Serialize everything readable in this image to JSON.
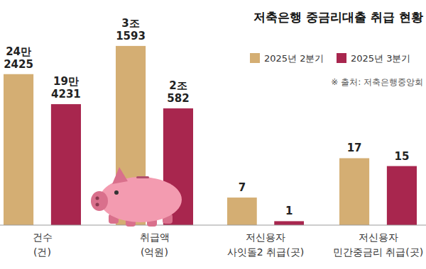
{
  "chart_data": [
    {
      "type": "bar",
      "title": "저축은행 중금리대출 취급 현황",
      "subtitle": "※ 출처: 저축은행중앙회",
      "legend": "top-right",
      "data_labels": true,
      "tick_labels": false,
      "categories": [
        "건수\n(건)"
      ],
      "series": [
        {
          "name": "2025년 2분기",
          "color": "#d4ae73",
          "values": [
            242425
          ],
          "value_labels": [
            "24만\n2425"
          ]
        },
        {
          "name": "2025년 3분기",
          "color": "#a8264e",
          "values": [
            194231
          ],
          "value_labels": [
            "19만\n4231"
          ]
        }
      ],
      "ylim": [
        0,
        316000
      ]
    },
    {
      "type": "bar",
      "data_labels": true,
      "tick_labels": false,
      "categories": [
        "취급액\n(억원)"
      ],
      "series": [
        {
          "color": "#d4ae73",
          "values": [
            31593
          ],
          "value_labels": [
            "3조\n1593"
          ]
        },
        {
          "color": "#a8264e",
          "values": [
            20582
          ],
          "value_labels": [
            "2조\n582"
          ]
        }
      ],
      "ylim": [
        0,
        34700
      ]
    },
    {
      "type": "bar",
      "data_labels": true,
      "tick_labels": false,
      "categories": [
        "저신용자\n사잇돌2 취급(곳)"
      ],
      "series": [
        {
          "color": "#d4ae73",
          "values": [
            7
          ]
        },
        {
          "color": "#a8264e",
          "values": [
            1
          ]
        }
      ],
      "ylim": [
        0,
        50
      ]
    },
    {
      "type": "bar",
      "data_labels": true,
      "tick_labels": false,
      "categories": [
        "저신용자\n민간중금리 취급(곳)"
      ],
      "series": [
        {
          "color": "#d4ae73",
          "values": [
            17
          ]
        },
        {
          "color": "#a8264e",
          "values": [
            15
          ]
        }
      ],
      "ylim": [
        0,
        50
      ]
    }
  ]
}
